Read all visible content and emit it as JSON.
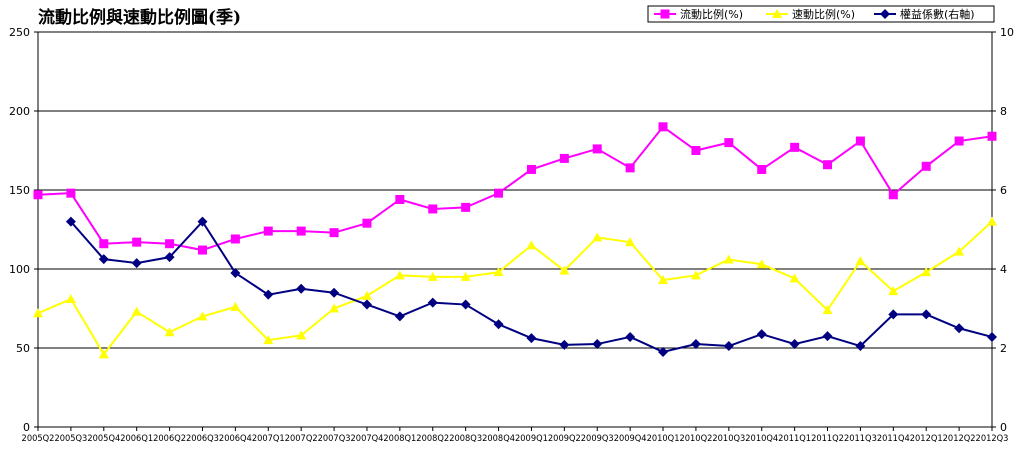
{
  "chart_data": {
    "type": "line",
    "title": "流動比例與速動比例圖(季)",
    "legend_position": "top-right",
    "grid": true,
    "y_left": {
      "min": 0,
      "max": 250,
      "ticks": [
        "0",
        "50",
        "100",
        "150",
        "200",
        "250"
      ]
    },
    "y_right": {
      "min": 0,
      "max": 10,
      "ticks": [
        "0",
        "2",
        "4",
        "6",
        "8",
        "10"
      ]
    },
    "categories": [
      "2005Q2",
      "2005Q3",
      "2005Q4",
      "2006Q1",
      "2006Q2",
      "2006Q3",
      "2006Q4",
      "2007Q1",
      "2007Q2",
      "2007Q3",
      "2007Q4",
      "2008Q1",
      "2008Q2",
      "2008Q3",
      "2008Q4",
      "2009Q1",
      "2009Q2",
      "2009Q3",
      "2009Q4",
      "2010Q1",
      "2010Q2",
      "2010Q3",
      "2010Q4",
      "2011Q1",
      "2011Q2",
      "2011Q3",
      "2011Q4",
      "2012Q1",
      "2012Q2",
      "2012Q3"
    ],
    "series": [
      {
        "name": "流動比例(%)",
        "axis": "left",
        "color": "#ff00ff",
        "marker": "square",
        "values": [
          147,
          148,
          116,
          117,
          116,
          112,
          119,
          124,
          124,
          123,
          129,
          144,
          138,
          139,
          148,
          163,
          170,
          176,
          164,
          190,
          175,
          180,
          163,
          177,
          166,
          181,
          147,
          165,
          181,
          184
        ]
      },
      {
        "name": "速動比例(%)",
        "axis": "left",
        "color": "#ffff00",
        "marker": "triangle",
        "values": [
          72,
          81,
          46,
          73,
          60,
          70,
          76,
          55,
          58,
          75,
          83,
          96,
          95,
          95,
          98,
          115,
          99,
          120,
          117,
          93,
          96,
          106,
          103,
          94,
          74,
          105,
          86,
          98,
          111,
          130
        ]
      },
      {
        "name": "權益係數(右軸)",
        "axis": "right",
        "color": "#000080",
        "marker": "diamond",
        "values": [
          null,
          5.2,
          4.25,
          4.15,
          4.3,
          5.2,
          3.9,
          3.35,
          3.5,
          3.4,
          3.1,
          2.8,
          3.15,
          3.1,
          2.6,
          2.25,
          2.08,
          2.1,
          2.28,
          1.9,
          2.1,
          2.05,
          2.35,
          2.1,
          2.3,
          2.05,
          2.85,
          2.85,
          2.5,
          2.28
        ]
      }
    ]
  }
}
